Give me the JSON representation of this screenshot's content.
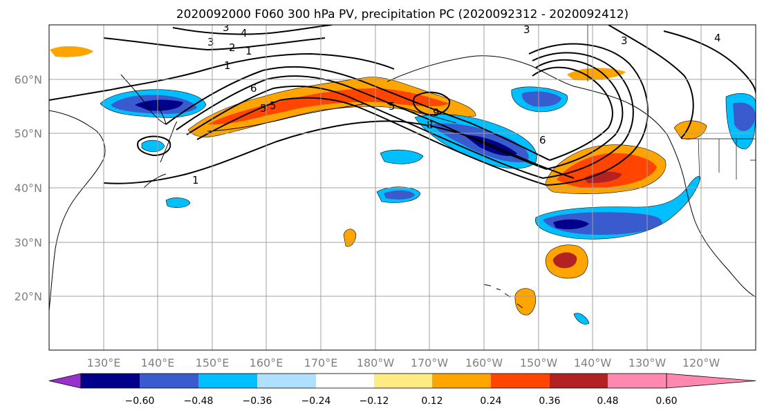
{
  "title": "2020092000 F060 300 hPa PV, precipitation PC (2020092312 - 2020092412)",
  "map": {
    "lat_ticks": [
      "60°N",
      "50°N",
      "40°N",
      "30°N",
      "20°N"
    ],
    "lon_ticks": [
      "130°E",
      "140°E",
      "150°E",
      "160°E",
      "170°E",
      "180°W",
      "170°W",
      "160°W",
      "150°W",
      "140°W",
      "130°W",
      "120°W"
    ],
    "contour_labels": [
      "3",
      "4",
      "3",
      "2",
      "1",
      "1",
      "6",
      "5",
      "5",
      "5",
      "9",
      "8",
      "6",
      "1",
      "3",
      "3",
      "4"
    ]
  },
  "colorbar": {
    "tick_labels": [
      "−0.60",
      "−0.48",
      "−0.36",
      "−0.24",
      "−0.12",
      "0.12",
      "0.24",
      "0.36",
      "0.48",
      "0.60"
    ],
    "colors": [
      "#9932cc",
      "#00008b",
      "#3a5bcd",
      "#00bfff",
      "#b0e0ff",
      "#ffffff",
      "#ffeb84",
      "#ffa500",
      "#ff4500",
      "#b22222",
      "#ff88b0"
    ]
  },
  "colors": {
    "grid": "#a0a0a0",
    "coast": "#000000"
  }
}
